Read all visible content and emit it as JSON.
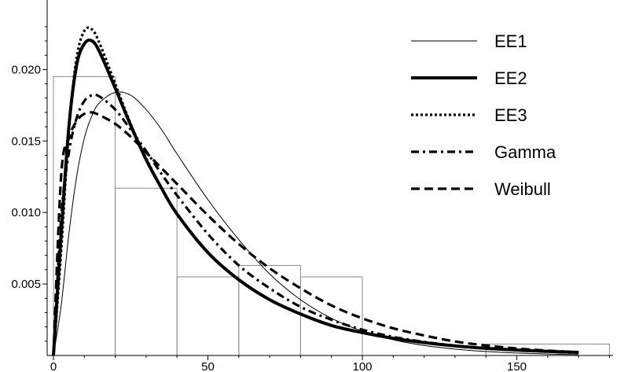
{
  "chart_data": {
    "type": "line",
    "title": "",
    "xlabel": "",
    "ylabel": "",
    "xlim": [
      -2,
      182
    ],
    "ylim": [
      0,
      0.0236
    ],
    "grid": false,
    "legend_position": "top-right",
    "x_ticks": [
      0,
      50,
      100,
      150
    ],
    "x_tick_labels": [
      "0",
      "50",
      "100",
      "150"
    ],
    "y_ticks": [
      0.005,
      0.01,
      0.015,
      0.02
    ],
    "y_tick_labels": [
      "0.005",
      "0.010",
      "0.015",
      "0.020"
    ],
    "histogram": [
      {
        "x0": 0,
        "x1": 20,
        "density": 0.0195
      },
      {
        "x0": 20,
        "x1": 40,
        "density": 0.0117
      },
      {
        "x0": 40,
        "x1": 60,
        "density": 0.0055
      },
      {
        "x0": 60,
        "x1": 80,
        "density": 0.0063
      },
      {
        "x0": 80,
        "x1": 100,
        "density": 0.0055
      },
      {
        "x0": 100,
        "x1": 140,
        "density": 0.0
      },
      {
        "x0": 140,
        "x1": 180,
        "density": 0.0008
      }
    ],
    "x": [
      0,
      2.5,
      5,
      7.5,
      10,
      12.5,
      15,
      20,
      25,
      30,
      35,
      40,
      50,
      60,
      70,
      80,
      90,
      100,
      110,
      120,
      130,
      140,
      150,
      160,
      170
    ],
    "series": [
      {
        "name": "EE1",
        "style": "thin",
        "values": [
          0.0,
          0.0035,
          0.0085,
          0.0125,
          0.0152,
          0.0168,
          0.0177,
          0.0184,
          0.0182,
          0.0172,
          0.0158,
          0.0141,
          0.0109,
          0.0081,
          0.0057,
          0.0039,
          0.0026,
          0.0017,
          0.0011,
          0.0007,
          0.00045,
          0.00028,
          0.00017,
          0.0001,
          6e-05
        ]
      },
      {
        "name": "EE2",
        "style": "thick",
        "values": [
          0.0,
          0.0085,
          0.016,
          0.0203,
          0.0218,
          0.022,
          0.0212,
          0.0187,
          0.0161,
          0.0137,
          0.0117,
          0.0099,
          0.0072,
          0.0053,
          0.0039,
          0.0029,
          0.0021,
          0.0016,
          0.0012,
          0.0009,
          0.00067,
          0.0005,
          0.00038,
          0.00029,
          0.00022
        ]
      },
      {
        "name": "EE3",
        "style": "dotted",
        "values": [
          0.0,
          0.0073,
          0.0158,
          0.0208,
          0.0227,
          0.0228,
          0.0218,
          0.019,
          0.0162,
          0.0138,
          0.0117,
          0.0099,
          0.0072,
          0.0053,
          0.0039,
          0.0029,
          0.0021,
          0.0016,
          0.0012,
          0.0009,
          0.00067,
          0.0005,
          0.00038,
          0.00029,
          0.00022
        ]
      },
      {
        "name": "Gamma",
        "style": "dashdot",
        "values": [
          0.0,
          0.0097,
          0.0142,
          0.0166,
          0.0178,
          0.0182,
          0.0181,
          0.0172,
          0.0158,
          0.0143,
          0.0127,
          0.0112,
          0.0085,
          0.0063,
          0.0047,
          0.0034,
          0.0025,
          0.0018,
          0.0013,
          0.00095,
          0.00069,
          0.0005,
          0.00036,
          0.00026,
          0.00019
        ]
      },
      {
        "name": "Weibull",
        "style": "dashed",
        "values": [
          0.0,
          0.0126,
          0.0152,
          0.0164,
          0.0169,
          0.017,
          0.0168,
          0.0162,
          0.0153,
          0.0142,
          0.0131,
          0.012,
          0.0098,
          0.0078,
          0.0061,
          0.0047,
          0.0035,
          0.0026,
          0.0019,
          0.0014,
          0.00098,
          0.0007,
          0.00049,
          0.00034,
          0.00023
        ]
      }
    ]
  }
}
